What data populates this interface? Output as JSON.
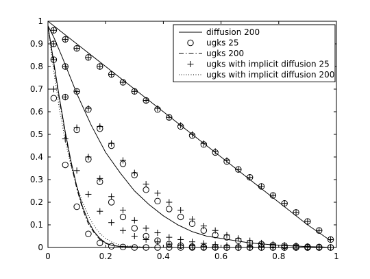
{
  "chart_data": {
    "type": "line",
    "title": "",
    "xlabel": "",
    "ylabel": "",
    "xlim": [
      0,
      1
    ],
    "ylim": [
      0,
      1
    ],
    "xticks": [
      "0",
      "0.2",
      "0.4",
      "0.6",
      "0.8",
      "1"
    ],
    "yticks": [
      "0",
      "0.1",
      "0.2",
      "0.3",
      "0.4",
      "0.5",
      "0.6",
      "0.7",
      "0.8",
      "0.9",
      "1"
    ],
    "grid": false,
    "legend_position": "top-right",
    "legend": [
      "diffusion 200",
      "ugks 25",
      "ugks 200",
      "ugks with implicit diffusion 25",
      "ugks with implicit diffusion 200"
    ],
    "series": [
      {
        "name": "diffusion 200",
        "style": "solid",
        "curves": [
          {
            "x": [
              0.0,
              0.05,
              0.1,
              0.2,
              0.3,
              0.4,
              0.5,
              0.6,
              0.7,
              0.8,
              0.9,
              0.98
            ],
            "y": [
              1.0,
              0.95,
              0.9,
              0.8,
              0.7,
              0.6,
              0.5,
              0.4,
              0.3,
              0.2,
              0.1,
              0.03
            ]
          },
          {
            "x": [
              0.0,
              0.02,
              0.05,
              0.1,
              0.15,
              0.2,
              0.25,
              0.3,
              0.35,
              0.4,
              0.45,
              0.5,
              0.55,
              0.6,
              0.65,
              0.7,
              0.75,
              0.8,
              0.85,
              0.9,
              0.95,
              0.98
            ],
            "y": [
              0.98,
              0.93,
              0.84,
              0.68,
              0.54,
              0.42,
              0.33,
              0.25,
              0.19,
              0.14,
              0.1,
              0.07,
              0.05,
              0.04,
              0.03,
              0.02,
              0.015,
              0.01,
              0.007,
              0.004,
              0.002,
              0.0
            ]
          },
          {
            "x": [
              0.0,
              0.02,
              0.04,
              0.06,
              0.08,
              0.1,
              0.12,
              0.14,
              0.16,
              0.18,
              0.2,
              0.22,
              0.25,
              0.3,
              0.35,
              0.4,
              0.5,
              0.6,
              0.7,
              0.8,
              0.9,
              0.98
            ],
            "y": [
              0.98,
              0.82,
              0.66,
              0.51,
              0.38,
              0.27,
              0.18,
              0.115,
              0.07,
              0.04,
              0.02,
              0.01,
              0.005,
              0.002,
              0.001,
              0.0,
              0.0,
              0.0,
              0.0,
              0.0,
              0.0,
              0.0
            ]
          }
        ]
      },
      {
        "name": "ugks 25",
        "style": "circle",
        "curves": [
          {
            "x": [
              0.02,
              0.06,
              0.1,
              0.14,
              0.18,
              0.22,
              0.26,
              0.3,
              0.34,
              0.38,
              0.42,
              0.46,
              0.5,
              0.54,
              0.58,
              0.62,
              0.66,
              0.7,
              0.74,
              0.78,
              0.82,
              0.86,
              0.9,
              0.94,
              0.98
            ],
            "y": [
              0.96,
              0.92,
              0.88,
              0.84,
              0.8,
              0.765,
              0.73,
              0.69,
              0.65,
              0.61,
              0.575,
              0.535,
              0.495,
              0.455,
              0.42,
              0.38,
              0.345,
              0.31,
              0.27,
              0.23,
              0.195,
              0.155,
              0.115,
              0.075,
              0.035
            ]
          },
          {
            "x": [
              0.02,
              0.06,
              0.1,
              0.14,
              0.18,
              0.22,
              0.26,
              0.3,
              0.34,
              0.38,
              0.42,
              0.46,
              0.5,
              0.54,
              0.58,
              0.62,
              0.66,
              0.7,
              0.74,
              0.78,
              0.82,
              0.86,
              0.9,
              0.94,
              0.98
            ],
            "y": [
              0.9,
              0.8,
              0.69,
              0.61,
              0.525,
              0.45,
              0.37,
              0.32,
              0.255,
              0.205,
              0.17,
              0.135,
              0.105,
              0.075,
              0.055,
              0.045,
              0.03,
              0.02,
              0.015,
              0.01,
              0.007,
              0.005,
              0.003,
              0.002,
              0.0
            ]
          },
          {
            "x": [
              0.02,
              0.06,
              0.1,
              0.14,
              0.18,
              0.22,
              0.26,
              0.3,
              0.34,
              0.38,
              0.42,
              0.46,
              0.5,
              0.54,
              0.58,
              0.62,
              0.66,
              0.7,
              0.74,
              0.78,
              0.82,
              0.86,
              0.9,
              0.94,
              0.98
            ],
            "y": [
              0.66,
              0.365,
              0.18,
              0.06,
              0.02,
              0.005,
              0.002,
              0.0,
              0.0,
              0.0,
              0.0,
              0.0,
              0.0,
              0.0,
              0.0,
              0.0,
              0.0,
              0.0,
              0.0,
              0.0,
              0.0,
              0.0,
              0.0,
              0.0,
              0.0
            ]
          },
          {
            "x": [
              0.02,
              0.06,
              0.1,
              0.14,
              0.18,
              0.22,
              0.26,
              0.3,
              0.34,
              0.38,
              0.42,
              0.46,
              0.5,
              0.54,
              0.58,
              0.62,
              0.66,
              0.7,
              0.74,
              0.78,
              0.82,
              0.86,
              0.9,
              0.94
            ],
            "y": [
              0.83,
              0.665,
              0.52,
              0.39,
              0.29,
              0.2,
              0.135,
              0.085,
              0.05,
              0.03,
              0.015,
              0.008,
              0.004,
              0.002,
              0.001,
              0.0,
              0.0,
              0.0,
              0.0,
              0.0,
              0.0,
              0.0,
              0.0,
              0.0
            ]
          }
        ]
      },
      {
        "name": "ugks 200",
        "style": "dashdot",
        "curves": [
          {
            "x": [
              0.0,
              0.02,
              0.04,
              0.06,
              0.08,
              0.1,
              0.12,
              0.14,
              0.16,
              0.18,
              0.2,
              0.22,
              0.25,
              0.3,
              0.4,
              0.5,
              0.7,
              0.98
            ],
            "y": [
              0.98,
              0.81,
              0.65,
              0.5,
              0.37,
              0.26,
              0.17,
              0.105,
              0.065,
              0.035,
              0.018,
              0.009,
              0.004,
              0.001,
              0.0,
              0.0,
              0.0,
              0.0
            ]
          }
        ]
      },
      {
        "name": "ugks with implicit diffusion 25",
        "style": "plus",
        "curves": [
          {
            "x": [
              0.02,
              0.06,
              0.1,
              0.14,
              0.18,
              0.22,
              0.26,
              0.3,
              0.34,
              0.38,
              0.42,
              0.46,
              0.5,
              0.54,
              0.58,
              0.62,
              0.66,
              0.7,
              0.74,
              0.78,
              0.82,
              0.86,
              0.9,
              0.94,
              0.98
            ],
            "y": [
              0.96,
              0.92,
              0.88,
              0.84,
              0.8,
              0.765,
              0.73,
              0.69,
              0.65,
              0.615,
              0.575,
              0.54,
              0.5,
              0.46,
              0.425,
              0.385,
              0.345,
              0.31,
              0.27,
              0.23,
              0.195,
              0.155,
              0.115,
              0.075,
              0.035
            ]
          },
          {
            "x": [
              0.02,
              0.06,
              0.1,
              0.14,
              0.18,
              0.22,
              0.26,
              0.3,
              0.34,
              0.38,
              0.42,
              0.46,
              0.5,
              0.54,
              0.58,
              0.62,
              0.66,
              0.7,
              0.74,
              0.78,
              0.82,
              0.86,
              0.9,
              0.94,
              0.98
            ],
            "y": [
              0.9,
              0.8,
              0.69,
              0.615,
              0.535,
              0.46,
              0.385,
              0.33,
              0.28,
              0.24,
              0.2,
              0.165,
              0.125,
              0.095,
              0.075,
              0.055,
              0.04,
              0.03,
              0.02,
              0.015,
              0.01,
              0.008,
              0.005,
              0.003,
              0.0
            ]
          },
          {
            "x": [
              0.02,
              0.06,
              0.1,
              0.14,
              0.18,
              0.22,
              0.26,
              0.3,
              0.34,
              0.38,
              0.42,
              0.46,
              0.5,
              0.54,
              0.58,
              0.62,
              0.66,
              0.7,
              0.74,
              0.78,
              0.82,
              0.86,
              0.9,
              0.94
            ],
            "y": [
              0.83,
              0.665,
              0.53,
              0.4,
              0.305,
              0.225,
              0.165,
              0.12,
              0.085,
              0.065,
              0.045,
              0.035,
              0.025,
              0.018,
              0.013,
              0.009,
              0.006,
              0.004,
              0.003,
              0.002,
              0.001,
              0.0,
              0.0,
              0.0
            ]
          },
          {
            "x": [
              0.02,
              0.06,
              0.1,
              0.14,
              0.18,
              0.22,
              0.26,
              0.3,
              0.34,
              0.38,
              0.42,
              0.46,
              0.5,
              0.54,
              0.58,
              0.62,
              0.66,
              0.7,
              0.74,
              0.78,
              0.82,
              0.86,
              0.9,
              0.94,
              0.98
            ],
            "y": [
              0.7,
              0.48,
              0.34,
              0.235,
              0.16,
              0.11,
              0.075,
              0.05,
              0.035,
              0.025,
              0.015,
              0.01,
              0.007,
              0.005,
              0.003,
              0.002,
              0.001,
              0.0,
              0.0,
              0.0,
              0.0,
              0.0,
              0.0,
              0.0,
              0.0
            ]
          }
        ]
      },
      {
        "name": "ugks with implicit diffusion 200",
        "style": "dotted",
        "curves": [
          {
            "x": [
              0.0,
              0.02,
              0.04,
              0.06,
              0.08,
              0.1,
              0.12,
              0.14,
              0.16,
              0.18,
              0.2,
              0.22,
              0.24,
              0.26,
              0.3,
              0.35,
              0.4,
              0.5,
              0.7,
              0.98
            ],
            "y": [
              0.98,
              0.78,
              0.61,
              0.47,
              0.36,
              0.27,
              0.2,
              0.14,
              0.095,
              0.062,
              0.04,
              0.025,
              0.015,
              0.009,
              0.004,
              0.001,
              0.0,
              0.0,
              0.0,
              0.0
            ]
          }
        ]
      }
    ]
  }
}
